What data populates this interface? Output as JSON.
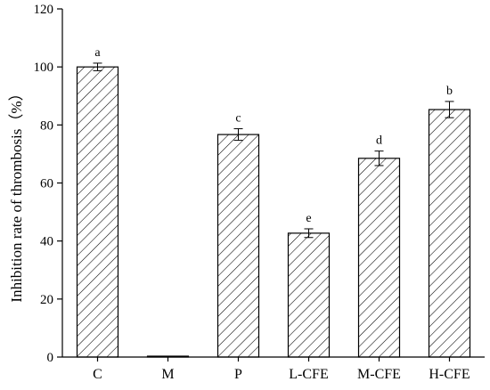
{
  "chart_data": {
    "type": "bar",
    "title": "",
    "xlabel": "",
    "ylabel": "Inhibition rate of thrombosis（%）",
    "ylim": [
      0,
      120
    ],
    "yticks": [
      0,
      20,
      40,
      60,
      80,
      100,
      120
    ],
    "categories": [
      "C",
      "M",
      "P",
      "L-CFE",
      "M-CFE",
      "H-CFE"
    ],
    "values": [
      100,
      0,
      76.7,
      42.7,
      68.5,
      85.3
    ],
    "errors": [
      1.3,
      0,
      2.0,
      1.5,
      2.5,
      2.8
    ],
    "significance_labels": [
      "a",
      "",
      "c",
      "e",
      "d",
      "b"
    ],
    "fill_pattern": "diagonal-hatch",
    "grid": false
  }
}
